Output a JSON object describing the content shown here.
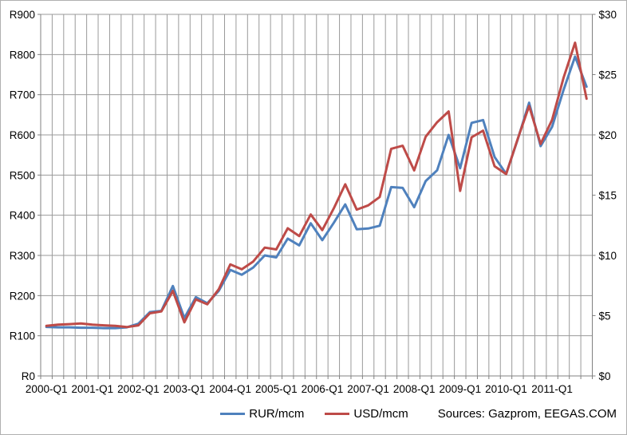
{
  "chart_data": {
    "type": "line",
    "x": [
      "2000-Q1",
      "2000-Q2",
      "2000-Q3",
      "2000-Q4",
      "2001-Q1",
      "2001-Q2",
      "2001-Q3",
      "2001-Q4",
      "2002-Q1",
      "2002-Q2",
      "2002-Q3",
      "2002-Q4",
      "2003-Q1",
      "2003-Q2",
      "2003-Q3",
      "2003-Q4",
      "2004-Q1",
      "2004-Q2",
      "2004-Q3",
      "2004-Q4",
      "2005-Q1",
      "2005-Q2",
      "2005-Q3",
      "2005-Q4",
      "2006-Q1",
      "2006-Q2",
      "2006-Q3",
      "2006-Q4",
      "2007-Q1",
      "2007-Q2",
      "2007-Q3",
      "2007-Q4",
      "2008-Q1",
      "2008-Q2",
      "2008-Q3",
      "2008-Q4",
      "2009-Q1",
      "2009-Q2",
      "2009-Q3",
      "2009-Q4",
      "2010-Q1",
      "2010-Q2",
      "2010-Q3",
      "2010-Q4",
      "2011-Q1",
      "2011-Q2",
      "2011-Q3",
      "2011-Q4"
    ],
    "x_label_every": 4,
    "series": [
      {
        "name": "RUR/mcm",
        "axis": "left",
        "color": "#4F81BD",
        "values": [
          122,
          121,
          121,
          120,
          120,
          119,
          119,
          121,
          130,
          159,
          162,
          224,
          144,
          196,
          181,
          212,
          264,
          252,
          270,
          300,
          295,
          342,
          325,
          380,
          338,
          381,
          427,
          365,
          367,
          374,
          470,
          468,
          420,
          485,
          512,
          600,
          517,
          630,
          637,
          545,
          503,
          588,
          680,
          572,
          620,
          712,
          795,
          720
        ]
      },
      {
        "name": "USD/mcm",
        "axis": "right",
        "color": "#BE4B48",
        "values": [
          4.15,
          4.25,
          4.3,
          4.35,
          4.25,
          4.2,
          4.15,
          4.05,
          4.2,
          5.2,
          5.35,
          7.05,
          4.45,
          6.35,
          5.95,
          7.2,
          9.25,
          8.85,
          9.5,
          10.65,
          10.5,
          12.25,
          11.6,
          13.4,
          12.1,
          13.9,
          15.9,
          13.8,
          14.15,
          14.85,
          18.85,
          19.1,
          17.05,
          19.85,
          21.05,
          21.95,
          15.35,
          19.8,
          20.35,
          17.4,
          16.75,
          19.65,
          22.4,
          19.25,
          21.25,
          24.75,
          27.65,
          23.0
        ]
      }
    ],
    "left_axis": {
      "min": 0,
      "max": 900,
      "step": 100,
      "labels": [
        "R0",
        "R100",
        "R200",
        "R300",
        "R400",
        "R500",
        "R600",
        "R700",
        "R800",
        "R900"
      ]
    },
    "right_axis": {
      "min": 0,
      "max": 30,
      "step": 5,
      "labels": [
        "$0",
        "$5",
        "$10",
        "$15",
        "$20",
        "$25",
        "$30"
      ]
    },
    "grid": true,
    "legend_position": "bottom",
    "title": ""
  },
  "legend": {
    "items": [
      {
        "label": "RUR/mcm",
        "color": "#4F81BD"
      },
      {
        "label": "USD/mcm",
        "color": "#BE4B48"
      }
    ]
  },
  "footer": {
    "sources": "Sources: Gazprom, EEGAS.COM"
  },
  "colors": {
    "grid": "#9a9a9a",
    "axis": "#808080",
    "text": "#000000",
    "background": "#ffffff",
    "rur_line": "#4F81BD",
    "usd_line": "#BE4B48"
  }
}
